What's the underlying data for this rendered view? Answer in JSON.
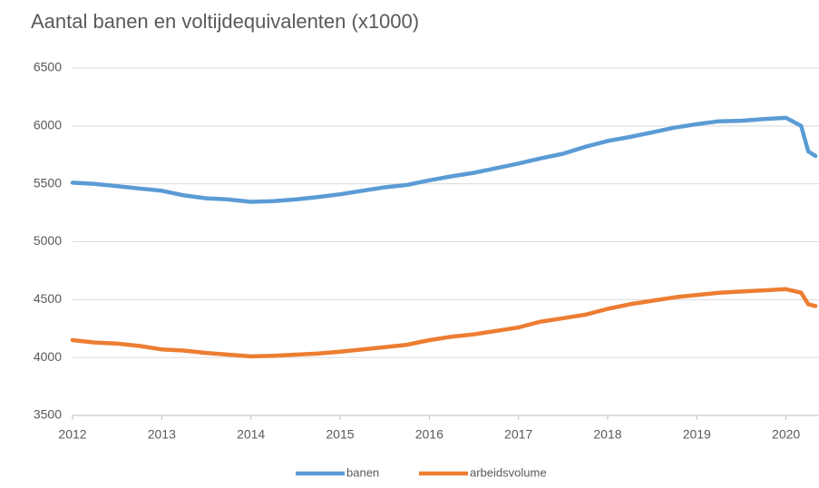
{
  "chart_data": {
    "type": "line",
    "title": "Aantal banen en voltijdequivalenten (x1000)",
    "x": [
      2012,
      2012.25,
      2012.5,
      2012.75,
      2013,
      2013.25,
      2013.5,
      2013.75,
      2014,
      2014.25,
      2014.5,
      2014.75,
      2015,
      2015.25,
      2015.5,
      2015.75,
      2016,
      2016.25,
      2016.5,
      2016.75,
      2017,
      2017.25,
      2017.5,
      2017.75,
      2018,
      2018.25,
      2018.5,
      2018.75,
      2019,
      2019.25,
      2019.5,
      2019.75,
      2020,
      2020.17,
      2020.25,
      2020.33
    ],
    "series": [
      {
        "name": "banen",
        "color": "#5b9bd5",
        "values": [
          5510,
          5500,
          5480,
          5460,
          5440,
          5400,
          5375,
          5365,
          5345,
          5350,
          5365,
          5385,
          5410,
          5440,
          5470,
          5490,
          5530,
          5565,
          5595,
          5635,
          5675,
          5720,
          5760,
          5820,
          5870,
          5905,
          5945,
          5985,
          6015,
          6040,
          6045,
          6060,
          6070,
          6000,
          5780,
          5740
        ]
      },
      {
        "name": "arbeidsvolume",
        "color": "#ed7d31",
        "values": [
          4150,
          4130,
          4120,
          4100,
          4070,
          4060,
          4040,
          4025,
          4010,
          4015,
          4025,
          4035,
          4050,
          4070,
          4090,
          4110,
          4150,
          4180,
          4200,
          4230,
          4260,
          4310,
          4340,
          4370,
          4420,
          4460,
          4490,
          4520,
          4540,
          4560,
          4570,
          4580,
          4590,
          4560,
          4460,
          4445
        ]
      }
    ],
    "xlim": [
      2012,
      2020.37
    ],
    "xticks": [
      2012,
      2013,
      2014,
      2015,
      2016,
      2017,
      2018,
      2019,
      2020
    ],
    "ylim": [
      3500,
      6500
    ],
    "yticks": [
      3500,
      4000,
      4500,
      5000,
      5500,
      6000,
      6500
    ],
    "grid": true,
    "legend": "bottom"
  }
}
